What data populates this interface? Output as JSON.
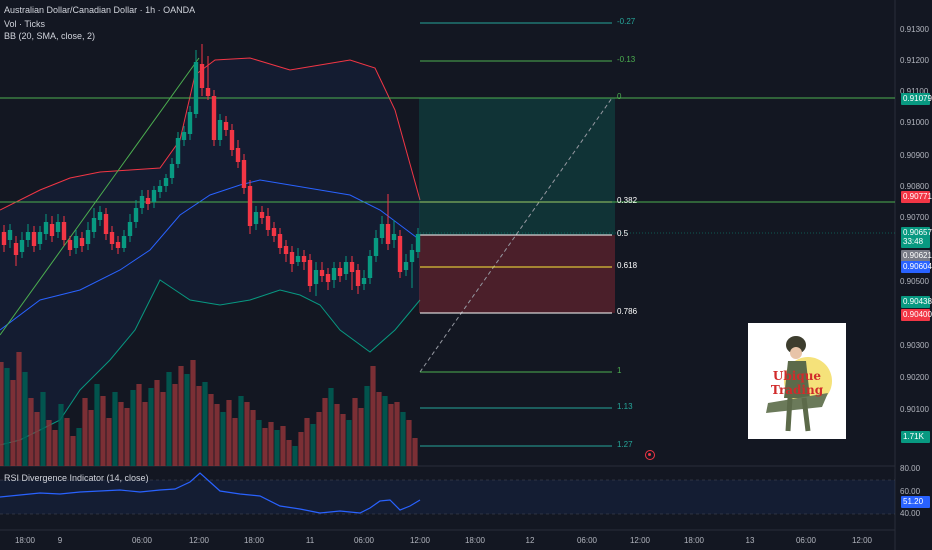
{
  "header": {
    "symbol": "Australian Dollar/Canadian Dollar · 1h · OANDA",
    "volume": "Vol · Ticks",
    "bb": "BB (20, SMA, close, 2)"
  },
  "rsi_title": "RSI Divergence Indicator (14, close)",
  "price_axis": [
    "0.91300",
    "0.91200",
    "0.91100",
    "0.91000",
    "0.90900",
    "0.90800",
    "0.90700",
    "0.90500",
    "0.90300",
    "0.90200",
    "0.90100"
  ],
  "price_tags": [
    {
      "label": "0.91079",
      "color": "#089981"
    },
    {
      "label": "0.90771",
      "color": "#f23645"
    },
    {
      "label": "0.90657",
      "color": "#089981"
    },
    {
      "label": "33:48",
      "color": "#089981"
    },
    {
      "label": "0.90621",
      "color": "#787b86"
    },
    {
      "label": "0.90604",
      "color": "#2962ff"
    },
    {
      "label": "0.90438",
      "color": "#089981"
    },
    {
      "label": "0.90400",
      "color": "#f23645"
    },
    {
      "label": "1.71K",
      "color": "#089981"
    },
    {
      "label": "51.20",
      "color": "#2962ff"
    }
  ],
  "rsi_axis": [
    "80.00",
    "60.00",
    "40.00"
  ],
  "time_axis": [
    "18:00",
    "9",
    "06:00",
    "12:00",
    "18:00",
    "11",
    "06:00",
    "12:00",
    "18:00",
    "12",
    "06:00",
    "12:00",
    "18:00",
    "13",
    "06:00",
    "12:00"
  ],
  "fib_levels": [
    "-0.27",
    "-0.13",
    "0",
    "0.382",
    "0.5",
    "0.618",
    "0.786",
    "1",
    "1.13",
    "1.27"
  ],
  "logo": {
    "text": "Ubique Trading"
  },
  "icons": {
    "alert": "alert-icon"
  }
}
